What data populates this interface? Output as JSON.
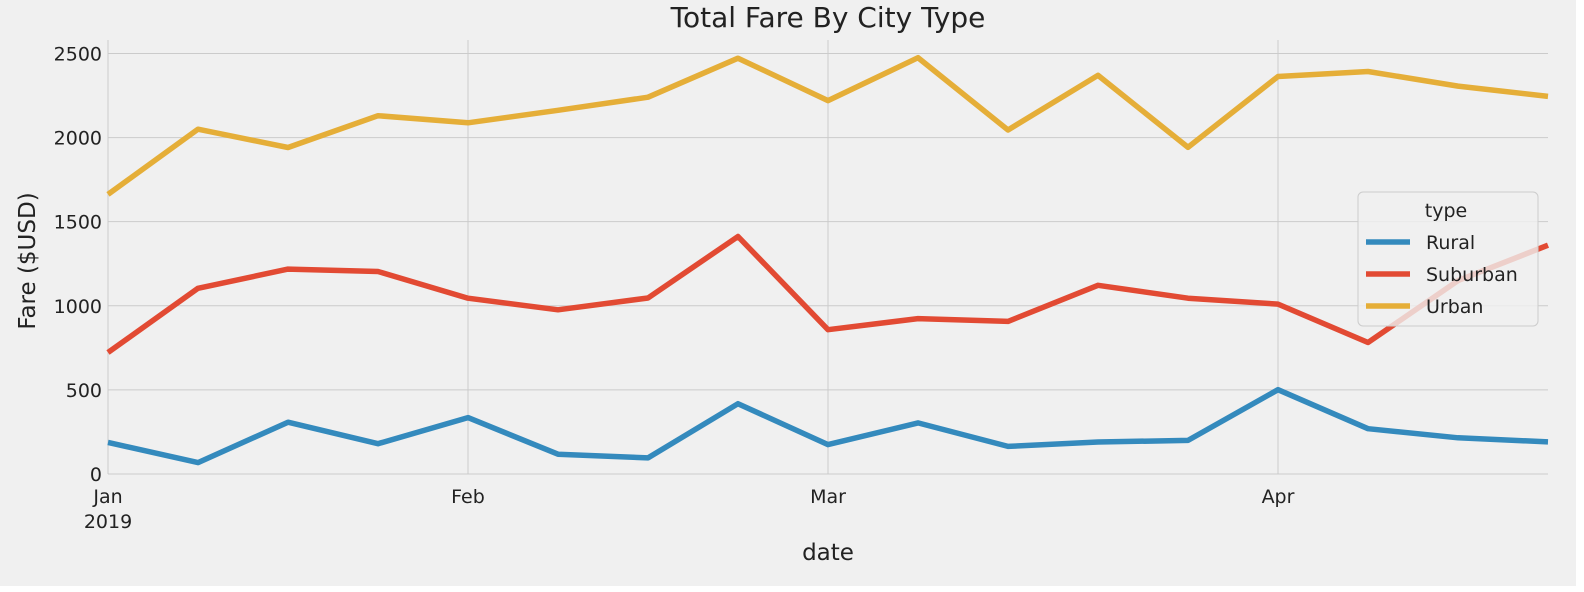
{
  "chart_data": {
    "type": "line",
    "title": "Total Fare By City Type",
    "xlabel": "date",
    "ylabel": "Fare ($USD)",
    "x": [
      "2019-01-06",
      "2019-01-13",
      "2019-01-20",
      "2019-01-27",
      "2019-02-03",
      "2019-02-10",
      "2019-02-17",
      "2019-02-24",
      "2019-03-03",
      "2019-03-10",
      "2019-03-17",
      "2019-03-24",
      "2019-03-31",
      "2019-04-07",
      "2019-04-14",
      "2019-04-21",
      "2019-04-28"
    ],
    "xlim": [
      "2019-01-06",
      "2019-04-28"
    ],
    "x_ticks": [
      {
        "date": "2019-01-06",
        "label": "Jan",
        "sublabel": "2019"
      },
      {
        "date": "2019-02-03",
        "label": "Feb",
        "sublabel": ""
      },
      {
        "date": "2019-03-03",
        "label": "Mar",
        "sublabel": ""
      },
      {
        "date": "2019-04-07",
        "label": "Apr",
        "sublabel": ""
      }
    ],
    "ylim": [
      0,
      2580
    ],
    "y_ticks": [
      0,
      500,
      1000,
      1500,
      2000,
      2500
    ],
    "grid": true,
    "legend": {
      "title": "type",
      "placement": "center-right"
    },
    "series": [
      {
        "name": "Rural",
        "color": "#348ABD",
        "values": [
          188,
          68,
          308,
          180,
          335,
          118,
          96,
          418,
          175,
          304,
          164,
          190,
          200,
          501,
          269,
          215,
          191
        ]
      },
      {
        "name": "Suburban",
        "color": "#E24A33",
        "values": [
          722,
          1104,
          1218,
          1204,
          1045,
          976,
          1046,
          1412,
          858,
          924,
          907,
          1122,
          1045,
          1010,
          782,
          1150,
          1360
        ]
      },
      {
        "name": "Urban",
        "color": "#E5AE38",
        "values": [
          1662,
          2050,
          1941,
          2130,
          2088,
          2162,
          2240,
          2472,
          2220,
          2475,
          2045,
          2370,
          1942,
          2363,
          2393,
          2306,
          2245
        ]
      }
    ]
  }
}
